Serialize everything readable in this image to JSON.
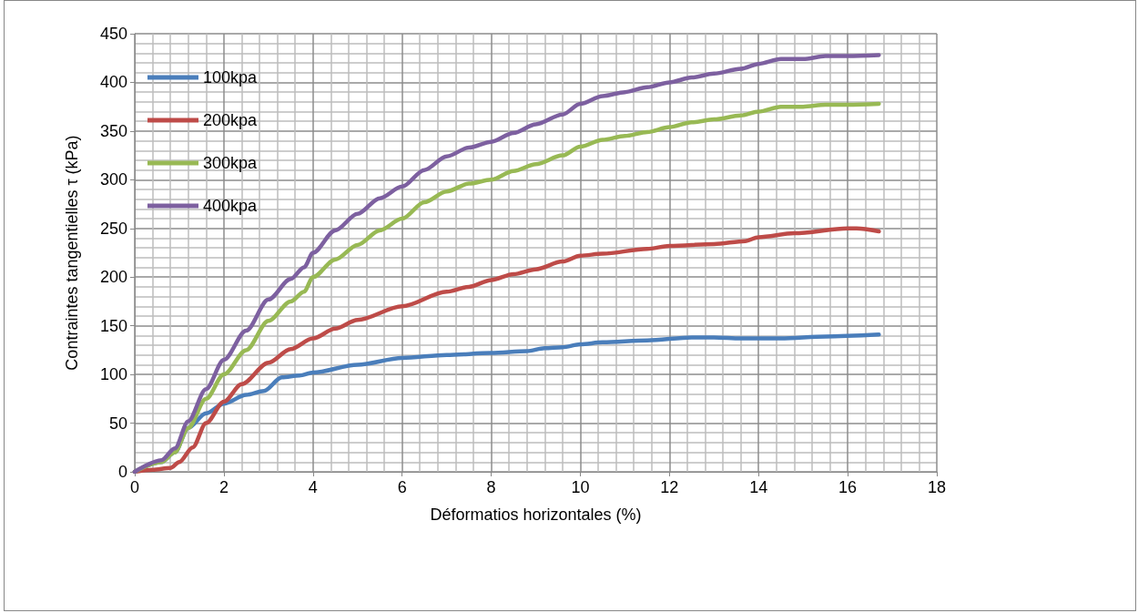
{
  "chart_data": {
    "type": "line",
    "xlabel": "Déformatios horizontales (%)",
    "ylabel": "Contraintes tangentielles τ (kPa)",
    "xlim": [
      0,
      18
    ],
    "xticks": [
      0,
      2,
      4,
      6,
      8,
      10,
      12,
      14,
      16,
      18
    ],
    "ylim": [
      0,
      450
    ],
    "yticks": [
      0,
      50,
      100,
      150,
      200,
      250,
      300,
      350,
      400,
      450
    ],
    "grid": true,
    "legend": "top left",
    "marker": "none",
    "line_style": "solid",
    "series": [
      {
        "name": "100kpa",
        "color": "#4a7ebb",
        "x": [
          0,
          0.6,
          0.9,
          1.2,
          1.6,
          2,
          2.5,
          2.9,
          3.3,
          3.7,
          4,
          5,
          6,
          7,
          8,
          8.8,
          9.2,
          9.6,
          10,
          10.5,
          11.5,
          12.5,
          13,
          13.6,
          14.5,
          15.5,
          16.7
        ],
        "values": [
          0,
          10,
          20,
          45,
          60,
          70,
          79,
          83,
          97,
          99,
          102,
          110,
          117,
          120,
          122,
          124,
          127,
          128,
          131,
          133,
          135,
          138,
          138,
          137,
          137,
          139,
          141
        ]
      },
      {
        "name": "200kpa",
        "color": "#be4b48",
        "x": [
          0,
          0.4,
          0.8,
          1,
          1.3,
          1.6,
          2,
          2.4,
          3,
          3.5,
          4,
          4.5,
          5,
          6,
          7,
          7.5,
          8,
          8.5,
          9,
          9.6,
          10,
          10.5,
          11.5,
          12,
          13,
          13.7,
          14,
          14.8,
          16,
          16.2,
          16.7
        ],
        "values": [
          0,
          2,
          4,
          10,
          25,
          50,
          72,
          90,
          112,
          126,
          137,
          147,
          156,
          170,
          185,
          190,
          197,
          203,
          208,
          216,
          222,
          224,
          229,
          232,
          234,
          237,
          241,
          245,
          250,
          250,
          247
        ]
      },
      {
        "name": "300kpa",
        "color": "#98b954",
        "x": [
          0,
          0.6,
          0.9,
          1.2,
          1.6,
          2,
          2.5,
          3,
          3.5,
          3.8,
          4,
          4.5,
          5,
          5.5,
          6,
          6.5,
          7,
          7.5,
          8,
          8.5,
          9,
          9.6,
          10,
          10.5,
          11,
          11.5,
          12,
          12.5,
          13,
          13.6,
          14,
          14.5,
          15,
          15.5,
          16,
          16.7
        ],
        "values": [
          0,
          10,
          20,
          45,
          75,
          100,
          125,
          155,
          175,
          185,
          200,
          218,
          233,
          248,
          260,
          277,
          288,
          296,
          300,
          309,
          316,
          325,
          334,
          341,
          345,
          349,
          354,
          359,
          362,
          366,
          370,
          375,
          375,
          377,
          377,
          378
        ]
      },
      {
        "name": "400kpa",
        "color": "#7d60a0",
        "x": [
          0,
          0.6,
          0.9,
          1.2,
          1.6,
          2,
          2.5,
          3,
          3.5,
          3.8,
          4,
          4.5,
          5,
          5.5,
          6,
          6.5,
          7,
          7.5,
          8,
          8.5,
          9,
          9.6,
          10,
          10.5,
          11,
          11.5,
          12,
          12.5,
          13,
          13.6,
          14,
          14.5,
          15,
          15.5,
          16,
          16.7
        ],
        "values": [
          0,
          12,
          24,
          52,
          85,
          115,
          145,
          177,
          198,
          210,
          225,
          248,
          265,
          281,
          293,
          310,
          324,
          333,
          339,
          348,
          357,
          367,
          378,
          386,
          390,
          395,
          400,
          405,
          409,
          414,
          419,
          424,
          424,
          427,
          427,
          428
        ]
      }
    ]
  }
}
